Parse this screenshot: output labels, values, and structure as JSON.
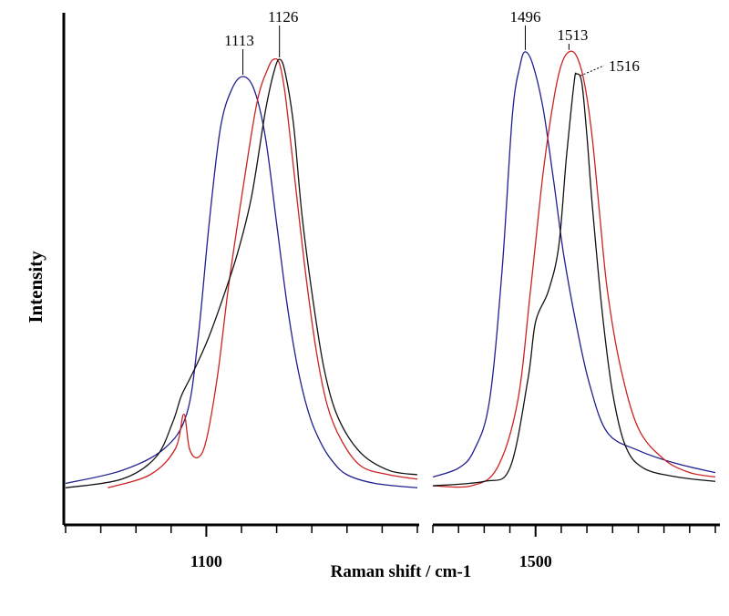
{
  "chart_data": {
    "type": "line",
    "title": "",
    "xlabel": "Raman shift / cm-1",
    "ylabel": "Intensity",
    "grid": false,
    "legend": "none",
    "panels": [
      {
        "name": "left",
        "xlim": [
          1050,
          1175
        ],
        "xticks_labeled": [
          {
            "value": 1100,
            "label": "1100"
          }
        ],
        "minor_tick_step": 12.5
      },
      {
        "name": "right",
        "xlim": [
          1460,
          1570
        ],
        "xticks_labeled": [
          {
            "value": 1500,
            "label": "1500"
          }
        ],
        "minor_tick_step": 10
      }
    ],
    "ylim": [
      0,
      1
    ],
    "series": [
      {
        "color": "#1f1f8f",
        "panel_points": [
          {
            "panel": "left",
            "x": [
              1050,
              1070,
              1085,
              1093,
              1097,
              1101,
              1105,
              1109,
              1113,
              1117,
              1121,
              1125,
              1129,
              1133,
              1137,
              1141,
              1145,
              1150,
              1160,
              1175
            ],
            "y": [
              0.02,
              0.05,
              0.1,
              0.18,
              0.35,
              0.62,
              0.84,
              0.93,
              0.96,
              0.93,
              0.82,
              0.62,
              0.42,
              0.27,
              0.17,
              0.11,
              0.07,
              0.04,
              0.02,
              0.01
            ]
          },
          {
            "panel": "right",
            "x": [
              1460,
              1470,
              1476,
              1482,
              1487,
              1491,
              1494,
              1496,
              1499,
              1503,
              1507,
              1511,
              1516,
              1521,
              1528,
              1540,
              1555,
              1570
            ],
            "y": [
              0.03,
              0.05,
              0.09,
              0.2,
              0.5,
              0.85,
              0.96,
              0.99,
              0.96,
              0.86,
              0.7,
              0.53,
              0.37,
              0.24,
              0.13,
              0.09,
              0.06,
              0.04
            ]
          }
        ],
        "peaks": [
          {
            "x": 1113,
            "label": "1113"
          },
          {
            "x": 1496,
            "label": "1496"
          }
        ]
      },
      {
        "color": "#cc2222",
        "panel_points": [
          {
            "panel": "left",
            "x": [
              1065,
              1080,
              1089,
              1092,
              1094,
              1097,
              1100,
              1104,
              1108,
              1113,
              1118,
              1122,
              1124,
              1126,
              1128,
              1131,
              1135,
              1139,
              1143,
              1148,
              1155,
              1165,
              1175
            ],
            "y": [
              0.01,
              0.04,
              0.1,
              0.18,
              0.1,
              0.08,
              0.12,
              0.27,
              0.48,
              0.7,
              0.9,
              0.98,
              1.0,
              0.99,
              0.92,
              0.75,
              0.52,
              0.33,
              0.2,
              0.12,
              0.06,
              0.04,
              0.03
            ]
          },
          {
            "panel": "right",
            "x": [
              1460,
              1475,
              1485,
              1493,
              1498,
              1503,
              1507,
              1510,
              1513,
              1516,
              1519,
              1522,
              1525,
              1528,
              1533,
              1540,
              1550,
              1560,
              1570
            ],
            "y": [
              0.01,
              0.01,
              0.05,
              0.2,
              0.45,
              0.72,
              0.88,
              0.96,
              0.99,
              0.98,
              0.92,
              0.8,
              0.62,
              0.45,
              0.28,
              0.14,
              0.07,
              0.04,
              0.03
            ]
          }
        ],
        "peaks": [
          {
            "x": 1126,
            "label": "1126"
          },
          {
            "x": 1513,
            "label": "1513"
          }
        ]
      },
      {
        "color": "#111111",
        "panel_points": [
          {
            "panel": "left",
            "x": [
              1050,
              1070,
              1082,
              1088,
              1091,
              1094,
              1097,
              1101,
              1106,
              1111,
              1116,
              1121,
              1124,
              1126,
              1128,
              1131,
              1134,
              1138,
              1142,
              1147,
              1155,
              1165,
              1175
            ],
            "y": [
              0.01,
              0.03,
              0.08,
              0.16,
              0.22,
              0.26,
              0.3,
              0.36,
              0.45,
              0.55,
              0.68,
              0.88,
              0.97,
              1.0,
              0.97,
              0.85,
              0.64,
              0.44,
              0.28,
              0.17,
              0.09,
              0.05,
              0.04
            ]
          },
          {
            "panel": "right",
            "x": [
              1460,
              1480,
              1490,
              1497,
              1500,
              1505,
              1509,
              1512,
              1515,
              1516,
              1518,
              1520,
              1522,
              1526,
              1530,
              1535,
              1542,
              1555,
              1570
            ],
            "y": [
              0.01,
              0.02,
              0.05,
              0.25,
              0.38,
              0.45,
              0.55,
              0.75,
              0.92,
              0.94,
              0.92,
              0.8,
              0.65,
              0.4,
              0.22,
              0.1,
              0.05,
              0.03,
              0.02
            ]
          }
        ],
        "peaks": [
          {
            "x": 1516,
            "label": "1516"
          }
        ]
      }
    ]
  }
}
